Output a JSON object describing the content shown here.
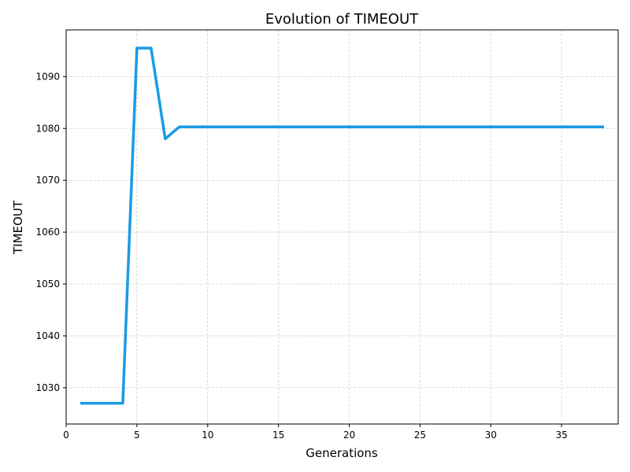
{
  "chart_data": {
    "type": "line",
    "title": "Evolution of TIMEOUT",
    "xlabel": "Generations",
    "ylabel": "TIMEOUT",
    "xlim": [
      0,
      39
    ],
    "ylim": [
      1023,
      1099
    ],
    "x_ticks": [
      0,
      5,
      10,
      15,
      20,
      25,
      30,
      35
    ],
    "y_ticks": [
      1030,
      1040,
      1050,
      1060,
      1070,
      1080,
      1090
    ],
    "grid": true,
    "series": [
      {
        "color": "#1a9be6",
        "x": [
          1,
          2,
          3,
          4,
          5,
          6,
          7,
          8,
          9,
          10,
          11,
          12,
          13,
          14,
          15,
          16,
          17,
          18,
          19,
          20,
          21,
          22,
          23,
          24,
          25,
          26,
          27,
          28,
          29,
          30,
          31,
          32,
          33,
          34,
          35,
          36,
          37,
          38
        ],
        "y": [
          1027,
          1027,
          1027,
          1027,
          1095.5,
          1095.5,
          1078,
          1080.3,
          1080.3,
          1080.3,
          1080.3,
          1080.3,
          1080.3,
          1080.3,
          1080.3,
          1080.3,
          1080.3,
          1080.3,
          1080.3,
          1080.3,
          1080.3,
          1080.3,
          1080.3,
          1080.3,
          1080.3,
          1080.3,
          1080.3,
          1080.3,
          1080.3,
          1080.3,
          1080.3,
          1080.3,
          1080.3,
          1080.3,
          1080.3,
          1080.3,
          1080.3,
          1080.3
        ]
      }
    ]
  }
}
